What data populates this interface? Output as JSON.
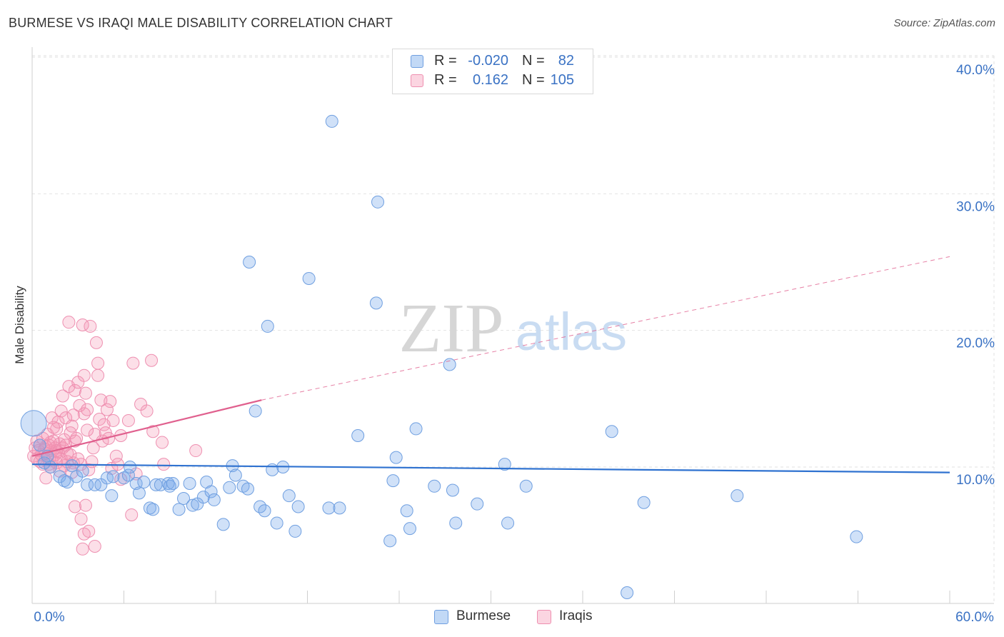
{
  "title": "BURMESE VS IRAQI MALE DISABILITY CORRELATION CHART",
  "source": "Source: ZipAtlas.com",
  "watermark": {
    "zip": "ZIP",
    "atlas": "atlas"
  },
  "colors": {
    "burmese_fill": "rgba(120,170,235,0.35)",
    "burmese_stroke": "#6f9fe0",
    "burmese_line": "#2f72d0",
    "iraqi_fill": "rgba(245,150,180,0.30)",
    "iraqi_stroke": "#ee8fb0",
    "iraqi_line": "#e0608e",
    "tick_label": "#3a72c4",
    "grid": "#e2e2e2"
  },
  "legend_top": [
    {
      "r_label": "R =",
      "r_value": "-0.020",
      "n_label": "N =",
      "n_value": "82"
    },
    {
      "r_label": "R =",
      "r_value": "0.162",
      "n_label": "N =",
      "n_value": "105"
    }
  ],
  "legend_bottom": [
    {
      "label": "Burmese"
    },
    {
      "label": "Iraqis"
    }
  ],
  "chart_data": {
    "type": "scatter",
    "title": "BURMESE VS IRAQI MALE DISABILITY CORRELATION CHART",
    "xlabel": "",
    "ylabel": "Male Disability",
    "xlim": [
      0,
      60
    ],
    "ylim": [
      0,
      42
    ],
    "x_tick_labels": [
      "0.0%",
      "60.0%"
    ],
    "y_ticks": [
      10,
      20,
      30,
      40
    ],
    "y_tick_labels": [
      "10.0%",
      "20.0%",
      "30.0%",
      "40.0%"
    ],
    "grid": true,
    "legend_position": "top-center",
    "series": [
      {
        "name": "Burmese",
        "r": -0.02,
        "n": 82,
        "trend": {
          "x0": 0,
          "y0": 10.2,
          "x1": 60,
          "y1": 9.6
        },
        "points": [
          [
            0.1,
            13.2
          ],
          [
            0.5,
            11.6
          ],
          [
            1.0,
            10.8
          ],
          [
            1.2,
            10.0
          ],
          [
            1.8,
            9.3
          ],
          [
            2.1,
            9.0
          ],
          [
            2.3,
            8.9
          ],
          [
            2.6,
            10.1
          ],
          [
            2.9,
            9.3
          ],
          [
            3.3,
            9.7
          ],
          [
            3.6,
            8.7
          ],
          [
            4.1,
            8.7
          ],
          [
            4.5,
            8.7
          ],
          [
            4.9,
            9.2
          ],
          [
            5.3,
            9.3
          ],
          [
            5.2,
            7.9
          ],
          [
            6.0,
            9.2
          ],
          [
            6.3,
            9.4
          ],
          [
            6.4,
            10.0
          ],
          [
            6.8,
            8.8
          ],
          [
            7.0,
            8.1
          ],
          [
            7.3,
            8.9
          ],
          [
            7.7,
            7.0
          ],
          [
            7.9,
            6.9
          ],
          [
            8.1,
            8.7
          ],
          [
            8.4,
            8.7
          ],
          [
            8.9,
            8.8
          ],
          [
            9.0,
            8.6
          ],
          [
            9.2,
            8.8
          ],
          [
            9.6,
            6.9
          ],
          [
            9.9,
            7.7
          ],
          [
            10.3,
            8.8
          ],
          [
            10.5,
            7.2
          ],
          [
            10.8,
            7.3
          ],
          [
            11.2,
            7.8
          ],
          [
            11.4,
            8.9
          ],
          [
            11.7,
            8.2
          ],
          [
            11.9,
            7.6
          ],
          [
            12.5,
            5.8
          ],
          [
            12.9,
            8.5
          ],
          [
            13.1,
            10.1
          ],
          [
            13.3,
            9.4
          ],
          [
            13.8,
            8.6
          ],
          [
            14.1,
            8.4
          ],
          [
            14.2,
            25.0
          ],
          [
            14.6,
            14.1
          ],
          [
            14.9,
            7.1
          ],
          [
            15.2,
            6.8
          ],
          [
            15.4,
            20.3
          ],
          [
            15.7,
            9.8
          ],
          [
            16.0,
            5.9
          ],
          [
            16.4,
            10.0
          ],
          [
            16.8,
            7.9
          ],
          [
            17.2,
            5.3
          ],
          [
            17.4,
            7.1
          ],
          [
            18.1,
            23.8
          ],
          [
            19.4,
            7.0
          ],
          [
            19.6,
            35.3
          ],
          [
            20.1,
            7.0
          ],
          [
            21.3,
            12.3
          ],
          [
            22.6,
            29.4
          ],
          [
            22.5,
            22.0
          ],
          [
            23.4,
            4.6
          ],
          [
            23.6,
            9.0
          ],
          [
            23.8,
            10.7
          ],
          [
            24.5,
            6.8
          ],
          [
            24.7,
            5.5
          ],
          [
            25.1,
            12.8
          ],
          [
            26.3,
            8.6
          ],
          [
            27.3,
            17.5
          ],
          [
            27.5,
            8.3
          ],
          [
            27.7,
            5.9
          ],
          [
            29.1,
            7.3
          ],
          [
            30.9,
            10.2
          ],
          [
            31.1,
            5.9
          ],
          [
            32.3,
            8.6
          ],
          [
            37.9,
            12.6
          ],
          [
            38.9,
            0.8
          ],
          [
            40.0,
            7.4
          ],
          [
            46.1,
            7.9
          ],
          [
            53.9,
            4.9
          ],
          [
            0.8,
            10.3
          ]
        ]
      },
      {
        "name": "Iraqis",
        "r": 0.162,
        "n": 105,
        "trend": {
          "x0": 0,
          "y0": 10.8,
          "x1": 15,
          "y1": 14.9,
          "dash_x1": 60,
          "dash_y1": 25.4
        },
        "points": [
          [
            0.1,
            10.8
          ],
          [
            0.2,
            11.4
          ],
          [
            0.3,
            10.6
          ],
          [
            0.3,
            11.9
          ],
          [
            0.4,
            11.2
          ],
          [
            0.5,
            10.4
          ],
          [
            0.5,
            11.6
          ],
          [
            0.6,
            10.9
          ],
          [
            0.7,
            12.1
          ],
          [
            0.7,
            10.2
          ],
          [
            0.8,
            11.3
          ],
          [
            0.9,
            9.2
          ],
          [
            0.9,
            11.0
          ],
          [
            1.0,
            12.4
          ],
          [
            1.0,
            10.7
          ],
          [
            1.1,
            11.6
          ],
          [
            1.2,
            10.0
          ],
          [
            1.2,
            11.2
          ],
          [
            1.3,
            13.6
          ],
          [
            1.3,
            10.5
          ],
          [
            1.4,
            11.9
          ],
          [
            1.5,
            10.9
          ],
          [
            1.5,
            11.4
          ],
          [
            1.6,
            10.3
          ],
          [
            1.6,
            12.8
          ],
          [
            1.7,
            11.1
          ],
          [
            1.7,
            13.3
          ],
          [
            1.8,
            9.7
          ],
          [
            1.8,
            11.7
          ],
          [
            1.9,
            10.6
          ],
          [
            1.9,
            14.1
          ],
          [
            2.0,
            11.4
          ],
          [
            2.0,
            15.2
          ],
          [
            2.1,
            10.1
          ],
          [
            2.1,
            12.0
          ],
          [
            2.2,
            13.6
          ],
          [
            2.3,
            11.0
          ],
          [
            2.3,
            10.4
          ],
          [
            2.4,
            20.6
          ],
          [
            2.4,
            15.9
          ],
          [
            2.5,
            12.5
          ],
          [
            2.6,
            13.0
          ],
          [
            2.6,
            9.6
          ],
          [
            2.7,
            10.3
          ],
          [
            2.8,
            11.9
          ],
          [
            2.8,
            15.6
          ],
          [
            2.9,
            12.1
          ],
          [
            3.0,
            16.2
          ],
          [
            3.1,
            14.5
          ],
          [
            3.2,
            10.2
          ],
          [
            3.3,
            20.4
          ],
          [
            3.4,
            13.9
          ],
          [
            3.4,
            16.7
          ],
          [
            3.5,
            15.4
          ],
          [
            3.6,
            14.2
          ],
          [
            3.7,
            9.8
          ],
          [
            3.8,
            20.3
          ],
          [
            3.9,
            10.4
          ],
          [
            4.0,
            11.4
          ],
          [
            4.1,
            12.4
          ],
          [
            4.2,
            19.1
          ],
          [
            4.3,
            17.6
          ],
          [
            4.3,
            16.7
          ],
          [
            4.4,
            13.5
          ],
          [
            4.5,
            14.9
          ],
          [
            4.6,
            11.9
          ],
          [
            4.7,
            13.1
          ],
          [
            4.8,
            12.5
          ],
          [
            5.0,
            12.1
          ],
          [
            5.1,
            14.8
          ],
          [
            5.2,
            9.9
          ],
          [
            5.3,
            13.4
          ],
          [
            5.5,
            10.8
          ],
          [
            5.6,
            10.2
          ],
          [
            5.8,
            9.1
          ],
          [
            6.3,
            13.4
          ],
          [
            6.5,
            6.5
          ],
          [
            6.6,
            17.6
          ],
          [
            7.1,
            14.6
          ],
          [
            7.5,
            14.1
          ],
          [
            7.8,
            17.8
          ],
          [
            7.9,
            12.6
          ],
          [
            8.5,
            11.8
          ],
          [
            8.6,
            10.2
          ],
          [
            10.7,
            11.2
          ],
          [
            2.8,
            7.1
          ],
          [
            3.2,
            6.2
          ],
          [
            3.4,
            5.1
          ],
          [
            3.7,
            5.3
          ],
          [
            3.5,
            7.2
          ],
          [
            3.3,
            4.0
          ],
          [
            4.1,
            4.2
          ],
          [
            3.0,
            10.6
          ],
          [
            2.5,
            10.9
          ],
          [
            1.1,
            10.2
          ],
          [
            0.9,
            11.5
          ],
          [
            1.4,
            12.9
          ],
          [
            1.6,
            11.2
          ],
          [
            2.2,
            11.6
          ],
          [
            2.7,
            13.8
          ],
          [
            3.6,
            12.7
          ],
          [
            4.9,
            14.2
          ],
          [
            5.8,
            12.3
          ],
          [
            6.8,
            9.5
          ],
          [
            1.2,
            11.8
          ]
        ]
      }
    ]
  }
}
